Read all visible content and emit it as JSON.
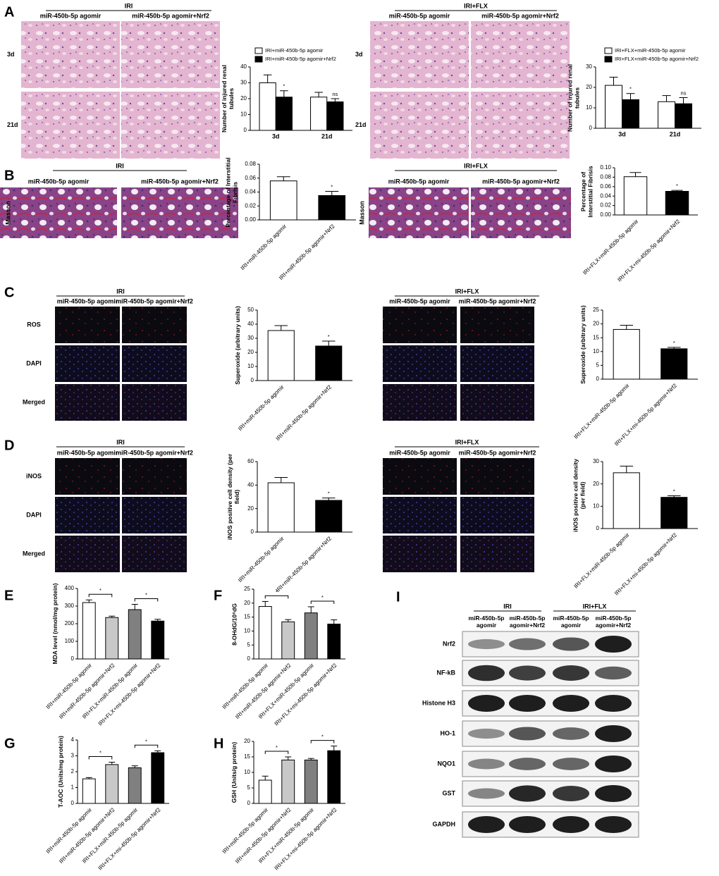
{
  "figure": {
    "panel_labels": [
      "A",
      "B",
      "C",
      "D",
      "E",
      "F",
      "G",
      "H",
      "I"
    ],
    "image_groups": [
      {
        "title": "IRI",
        "columns": [
          "miR-450b-5p agomir",
          "miR-450b-5p agomir+Nrf2"
        ],
        "rows": [
          "3d",
          "21d"
        ]
      },
      {
        "title": "IRI+FLX",
        "columns": [
          "miR-450b-5p agomir",
          "miR-450b-5p agomir+Nrf2"
        ],
        "rows": [
          "3d",
          "21d"
        ]
      },
      {
        "title": "IRI",
        "columns": [
          "miR-450b-5p agomir",
          "miR-450b-5p agomir+Nrf2"
        ],
        "rows": [
          "Masson"
        ]
      },
      {
        "title": "IRI+FLX",
        "columns": [
          "miR-450b-5p agomir",
          "miR-450b-5p agomir+Nrf2"
        ],
        "rows": [
          "Masson"
        ]
      },
      {
        "title": "IRI",
        "columns": [
          "miR-450b-5p agomir",
          "miR-450b-5p agomir+Nrf2"
        ],
        "rows": [
          "ROS",
          "DAPI",
          "Merged"
        ]
      },
      {
        "title": "IRI+FLX",
        "columns": [
          "miR-450b-5p agomir",
          "miR-450b-5p agomir+Nrf2"
        ]
      },
      {
        "title": "IRI",
        "columns": [
          "miR-450b-5p agomir",
          "miR-450b-5p agomir+Nrf2"
        ],
        "rows": [
          "iNOS",
          "DAPI",
          "Merged"
        ]
      },
      {
        "title": "IRI+FLX",
        "columns": [
          "miR-450b-5p agomir",
          "miR-450b-5p agomir+Nrf2"
        ]
      }
    ],
    "blot": {
      "groups": [
        "IRI",
        "IRI+FLX"
      ],
      "columns": [
        "miR-450b-5p agomir",
        "miR-450b-5p agomir+Nrf2",
        "miR-450b-5p agomir",
        "miR-450b-5p agomir+Nrf2"
      ],
      "rows": [
        "Nrf2",
        "NF-kB",
        "Histone H3",
        "HO-1",
        "NQO1",
        "GST",
        "GAPDH"
      ]
    }
  },
  "chart_data": [
    {
      "type": "bar",
      "y_label": "Number of injured renal tubules",
      "categories": [
        "3d",
        "21d"
      ],
      "series": [
        {
          "name": "IRI+miR-450b-5p agomir",
          "color": "#ffffff",
          "values": [
            30,
            21
          ],
          "errors": [
            5,
            3
          ]
        },
        {
          "name": "IRI+miR-450b-5p agomir+Nrf2",
          "color": "#000000",
          "values": [
            21,
            18
          ],
          "errors": [
            4,
            2
          ]
        }
      ],
      "ylim": [
        0,
        40
      ],
      "yticks": [
        0,
        10,
        20,
        30,
        40
      ],
      "annotations": [
        "*",
        "ns"
      ]
    },
    {
      "type": "bar",
      "y_label": "Number of injured renal tubules",
      "categories": [
        "3d",
        "21d"
      ],
      "series": [
        {
          "name": "IRI+FLX+miR-450b-5p agomir",
          "color": "#ffffff",
          "values": [
            21,
            13
          ],
          "errors": [
            4,
            3
          ]
        },
        {
          "name": "IRI+FLX+miR-450b-5p agomir+Nrf2",
          "color": "#000000",
          "values": [
            14,
            12
          ],
          "errors": [
            3,
            3
          ]
        }
      ],
      "ylim": [
        0,
        30
      ],
      "yticks": [
        0,
        10,
        20,
        30
      ],
      "annotations": [
        "*",
        "ns"
      ]
    },
    {
      "type": "bar",
      "y_label": "Percentage of Interstitial Fibrisis",
      "categories": [
        "IRI+miR-450b-5p agomir",
        "IRI+miR-450b-5p agomir+Nrf2"
      ],
      "values": [
        0.056,
        0.035
      ],
      "errors": [
        0.006,
        0.006
      ],
      "colors": [
        "#ffffff",
        "#000000"
      ],
      "ylim": [
        0,
        0.08
      ],
      "yticks": [
        {
          "value": 0,
          "label": "0.00"
        },
        {
          "value": 0.02,
          "label": "0.02"
        },
        {
          "value": 0.04,
          "label": "0.04"
        },
        {
          "value": 0.06,
          "label": "0.06"
        },
        {
          "value": 0.08,
          "label": "0.08"
        }
      ],
      "annotations": [
        "*"
      ]
    },
    {
      "type": "bar",
      "y_label": "Percentage of Interstitial Fibrisis",
      "categories": [
        "IRI+FLX+miR-450b-5p agomir",
        "IRI+FLX+mi-450b-5p agomir+Nrf2"
      ],
      "values": [
        0.081,
        0.05
      ],
      "errors": [
        0.009,
        0.002
      ],
      "colors": [
        "#ffffff",
        "#000000"
      ],
      "ylim": [
        0,
        0.1
      ],
      "yticks": [
        {
          "value": 0,
          "label": "0.00"
        },
        {
          "value": 0.02,
          "label": "0.02"
        },
        {
          "value": 0.04,
          "label": "0.04"
        },
        {
          "value": 0.06,
          "label": "0.06"
        },
        {
          "value": 0.08,
          "label": "0.08"
        },
        {
          "value": 0.1,
          "label": "0.10"
        }
      ],
      "annotations": [
        "*"
      ]
    },
    {
      "type": "bar",
      "y_label": "Superoxide (arbitrary units)",
      "categories": [
        "IRI+miR-450b-5p agomir",
        "IRI+miR-450b-5p agomir+Nrf2"
      ],
      "values": [
        35.5,
        24.5
      ],
      "errors": [
        3.5,
        3.5
      ],
      "colors": [
        "#ffffff",
        "#000000"
      ],
      "ylim": [
        0,
        50
      ],
      "yticks": [
        0,
        10,
        20,
        30,
        40,
        50
      ],
      "annotations": [
        "*"
      ]
    },
    {
      "type": "bar",
      "y_label": "Superoxide (arbitrary units)",
      "categories": [
        "IRI+FLX+miR-450b-5p agomir",
        "IRI+FLX+mi-450b-5p agomir+Nrf2"
      ],
      "values": [
        18,
        11
      ],
      "errors": [
        1.5,
        0.5
      ],
      "colors": [
        "#ffffff",
        "#000000"
      ],
      "ylim": [
        0,
        25
      ],
      "yticks": [
        0,
        5,
        10,
        15,
        20,
        25
      ],
      "annotations": [
        "*"
      ]
    },
    {
      "type": "bar",
      "y_label": "iNOS positive cell density (per field)",
      "categories": [
        "IRI+miR-450b-5p agomir",
        "IRI+miR-450b-5p agomir+Nrf2"
      ],
      "values": [
        42,
        27
      ],
      "errors": [
        4.5,
        2
      ],
      "colors": [
        "#ffffff",
        "#000000"
      ],
      "ylim": [
        0,
        60
      ],
      "yticks": [
        0,
        20,
        40,
        60
      ],
      "annotations": [
        "*"
      ]
    },
    {
      "type": "bar",
      "y_label": "iNOS positive cell density (per field)",
      "categories": [
        "IRI+FLX+miR-450b-5p agomir",
        "IRI+FLX+mi-450b-5p agomir+Nrf2"
      ],
      "values": [
        25,
        14
      ],
      "errors": [
        3,
        0.7
      ],
      "colors": [
        "#ffffff",
        "#000000"
      ],
      "ylim": [
        0,
        30
      ],
      "yticks": [
        0,
        10,
        20,
        30
      ],
      "annotations": [
        "*"
      ]
    },
    {
      "type": "bar",
      "y_label": "MDA level (nmol/mg protein)",
      "categories": [
        "IRI+miR-450b-5p agomir",
        "IRI+miR-450b-5p agomir+Nrf2",
        "IRI+FLX+miR-450b-5p agomir",
        "IRI+FLX+mi-450b-5p agomir+Nrf2"
      ],
      "values": [
        320,
        235,
        280,
        215
      ],
      "errors": [
        15,
        8,
        30,
        10
      ],
      "colors": [
        "#ffffff",
        "#c8c8c8",
        "#808080",
        "#000000"
      ],
      "ylim": [
        0,
        400
      ],
      "yticks": [
        0,
        100,
        200,
        300,
        400
      ],
      "annotations": [
        "*",
        "*"
      ]
    },
    {
      "type": "bar",
      "y_label": "8-OHdG/10⁶dG",
      "categories": [
        "IRI+miR-450b-5p agomir",
        "IRI+miR-450b-5p agomir+Nrf2",
        "IRI+FLX+miR-450b-5p agomir",
        "IRI+FLX+mi-450b-5p agomir+Nrf2"
      ],
      "values": [
        18.8,
        13.3,
        16.5,
        12.5
      ],
      "errors": [
        1.8,
        0.8,
        2.2,
        1.5
      ],
      "colors": [
        "#ffffff",
        "#c8c8c8",
        "#808080",
        "#000000"
      ],
      "ylim": [
        0,
        25
      ],
      "yticks": [
        0,
        5,
        10,
        15,
        20,
        25
      ],
      "annotations": [
        "*",
        "*"
      ]
    },
    {
      "type": "bar",
      "y_label": "T-AOC (Units/mg protein)",
      "categories": [
        "IRI+miR-450b-5p agomir",
        "IRI+miR-450b-5p agomir+Nrf2",
        "IRI+FLX+miR-450b-5p agomir",
        "IRI+FLX+mi-450b-5p agomir+Nrf2"
      ],
      "values": [
        1.55,
        2.45,
        2.25,
        3.2
      ],
      "errors": [
        0.08,
        0.15,
        0.12,
        0.12
      ],
      "colors": [
        "#ffffff",
        "#c8c8c8",
        "#808080",
        "#000000"
      ],
      "ylim": [
        0,
        4
      ],
      "yticks": [
        0,
        1,
        2,
        3,
        4
      ],
      "annotations": [
        "*",
        "*"
      ]
    },
    {
      "type": "bar",
      "y_label": "GSH (Units/g protein)",
      "categories": [
        "IRI+miR-450b-5p agomir",
        "IRI+miR-450b-5p agomir+Nrf2",
        "IRI+FLX+miR-450b-5p agomir",
        "IRI+FLX+mi-450b-5p agomir+Nrf2"
      ],
      "values": [
        7.5,
        14,
        14,
        17
      ],
      "errors": [
        1.3,
        1,
        0.5,
        1.5
      ],
      "colors": [
        "#ffffff",
        "#c8c8c8",
        "#808080",
        "#000000"
      ],
      "ylim": [
        0,
        20
      ],
      "yticks": [
        0,
        5,
        10,
        15,
        20
      ],
      "annotations": [
        "*",
        "*"
      ]
    }
  ]
}
